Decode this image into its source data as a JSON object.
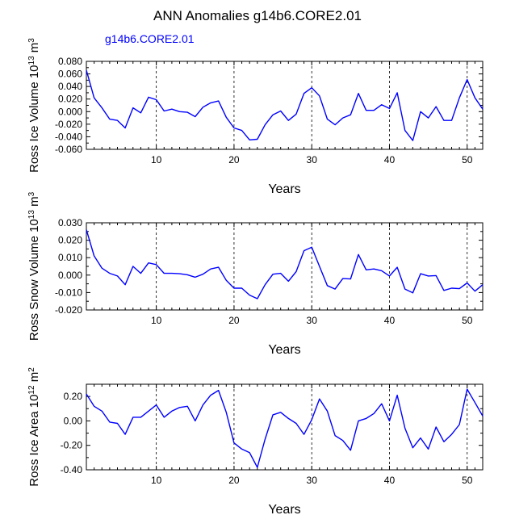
{
  "page_title": "ANN Anomalies g14b6.CORE2.01",
  "series_label": "g14b6.CORE2.01",
  "colors": {
    "series": "#0000ff",
    "axis": "#000000",
    "gridline": "#000000"
  },
  "chart_data": [
    {
      "type": "line",
      "name": "ross-ice-volume",
      "xlabel": "Years",
      "ylabel": {
        "prefix": "Ross Ice Volume 10",
        "exp1": "13",
        "mid": " m",
        "exp2": "3"
      },
      "xlim": [
        1,
        52
      ],
      "ylim": [
        -0.06,
        0.08
      ],
      "xticks": [
        10,
        20,
        30,
        40,
        50
      ],
      "yticks": [
        -0.06,
        -0.04,
        -0.02,
        0.0,
        0.02,
        0.04,
        0.06,
        0.08
      ],
      "ytick_labels": [
        "-0.060",
        "-0.040",
        "-0.020",
        "0.000",
        "0.020",
        "0.040",
        "0.060",
        "0.080"
      ],
      "gridlines_x": [
        10,
        20,
        30,
        40,
        50
      ],
      "x": [
        1,
        2,
        3,
        4,
        5,
        6,
        7,
        8,
        9,
        10,
        11,
        12,
        13,
        14,
        15,
        16,
        17,
        18,
        19,
        20,
        21,
        22,
        23,
        24,
        25,
        26,
        27,
        28,
        29,
        30,
        31,
        32,
        33,
        34,
        35,
        36,
        37,
        38,
        39,
        40,
        41,
        42,
        43,
        44,
        45,
        46,
        47,
        48,
        49,
        50,
        51,
        52
      ],
      "y": [
        0.066,
        0.022,
        0.006,
        -0.012,
        -0.014,
        -0.026,
        0.006,
        -0.002,
        0.023,
        0.019,
        0.001,
        0.004,
        0.0,
        -0.001,
        -0.008,
        0.007,
        0.014,
        0.017,
        -0.009,
        -0.026,
        -0.03,
        -0.045,
        -0.044,
        -0.021,
        -0.005,
        0.001,
        -0.014,
        -0.004,
        0.029,
        0.038,
        0.025,
        -0.012,
        -0.021,
        -0.01,
        -0.005,
        0.029,
        0.002,
        0.002,
        0.011,
        0.005,
        0.03,
        -0.03,
        -0.046,
        0.0,
        -0.01,
        0.008,
        -0.014,
        -0.014,
        0.022,
        0.051,
        0.022,
        0.004
      ]
    },
    {
      "type": "line",
      "name": "ross-snow-volume",
      "xlabel": "Years",
      "ylabel": {
        "prefix": "Ross Snow Volume 10",
        "exp1": "13",
        "mid": " m",
        "exp2": "3"
      },
      "xlim": [
        1,
        52
      ],
      "ylim": [
        -0.02,
        0.03
      ],
      "xticks": [
        10,
        20,
        30,
        40,
        50
      ],
      "yticks": [
        -0.02,
        -0.01,
        0.0,
        0.01,
        0.02,
        0.03
      ],
      "ytick_labels": [
        "-0.020",
        "-0.010",
        "0.000",
        "0.010",
        "0.020",
        "0.030"
      ],
      "gridlines_x": [
        10,
        20,
        30,
        40,
        50
      ],
      "x": [
        1,
        2,
        3,
        4,
        5,
        6,
        7,
        8,
        9,
        10,
        11,
        12,
        13,
        14,
        15,
        16,
        17,
        18,
        19,
        20,
        21,
        22,
        23,
        24,
        25,
        26,
        27,
        28,
        29,
        30,
        31,
        32,
        33,
        34,
        35,
        36,
        37,
        38,
        39,
        40,
        41,
        42,
        43,
        44,
        45,
        46,
        47,
        48,
        49,
        50,
        51,
        52
      ],
      "y": [
        0.026,
        0.011,
        0.004,
        0.001,
        -0.0005,
        -0.0055,
        0.005,
        0.001,
        0.007,
        0.006,
        0.001,
        0.001,
        0.0008,
        0.0002,
        -0.0012,
        0.0005,
        0.0035,
        0.0045,
        -0.003,
        -0.0075,
        -0.0075,
        -0.0115,
        -0.0135,
        -0.0055,
        0.0005,
        0.001,
        -0.0035,
        0.002,
        0.014,
        0.016,
        0.005,
        -0.006,
        -0.008,
        -0.002,
        -0.0022,
        0.0118,
        0.003,
        0.0035,
        0.0025,
        -0.0005,
        0.0045,
        -0.008,
        -0.0102,
        0.0008,
        -0.0005,
        -0.0003,
        -0.0088,
        -0.0075,
        -0.0078,
        -0.0045,
        -0.0092,
        -0.0055
      ]
    },
    {
      "type": "line",
      "name": "ross-ice-area",
      "xlabel": "Years",
      "ylabel": {
        "prefix": "Ross Ice Area 10",
        "exp1": "12",
        "mid": " m",
        "exp2": "2"
      },
      "xlim": [
        1,
        52
      ],
      "ylim": [
        -0.4,
        0.3
      ],
      "xticks": [
        10,
        20,
        30,
        40,
        50
      ],
      "yticks": [
        -0.4,
        -0.2,
        0.0,
        0.2
      ],
      "ytick_labels": [
        "-0.40",
        "-0.20",
        "0.00",
        "0.20"
      ],
      "gridlines_x": [
        10,
        20,
        30,
        40,
        50
      ],
      "x": [
        1,
        2,
        3,
        4,
        5,
        6,
        7,
        8,
        9,
        10,
        11,
        12,
        13,
        14,
        15,
        16,
        17,
        18,
        19,
        20,
        21,
        22,
        23,
        24,
        25,
        26,
        27,
        28,
        29,
        30,
        31,
        32,
        33,
        34,
        35,
        36,
        37,
        38,
        39,
        40,
        41,
        42,
        43,
        44,
        45,
        46,
        47,
        48,
        49,
        50,
        51,
        52
      ],
      "y": [
        0.22,
        0.12,
        0.08,
        -0.01,
        -0.02,
        -0.11,
        0.03,
        0.03,
        0.08,
        0.13,
        0.03,
        0.08,
        0.11,
        0.12,
        0.0,
        0.13,
        0.21,
        0.25,
        0.07,
        -0.18,
        -0.23,
        -0.26,
        -0.38,
        -0.15,
        0.05,
        0.07,
        0.02,
        -0.02,
        -0.11,
        0.01,
        0.18,
        0.08,
        -0.12,
        -0.16,
        -0.24,
        0.0,
        0.02,
        0.06,
        0.14,
        0.0,
        0.21,
        -0.06,
        -0.22,
        -0.14,
        -0.23,
        -0.05,
        -0.17,
        -0.11,
        -0.03,
        0.26,
        0.15,
        0.04
      ]
    }
  ]
}
